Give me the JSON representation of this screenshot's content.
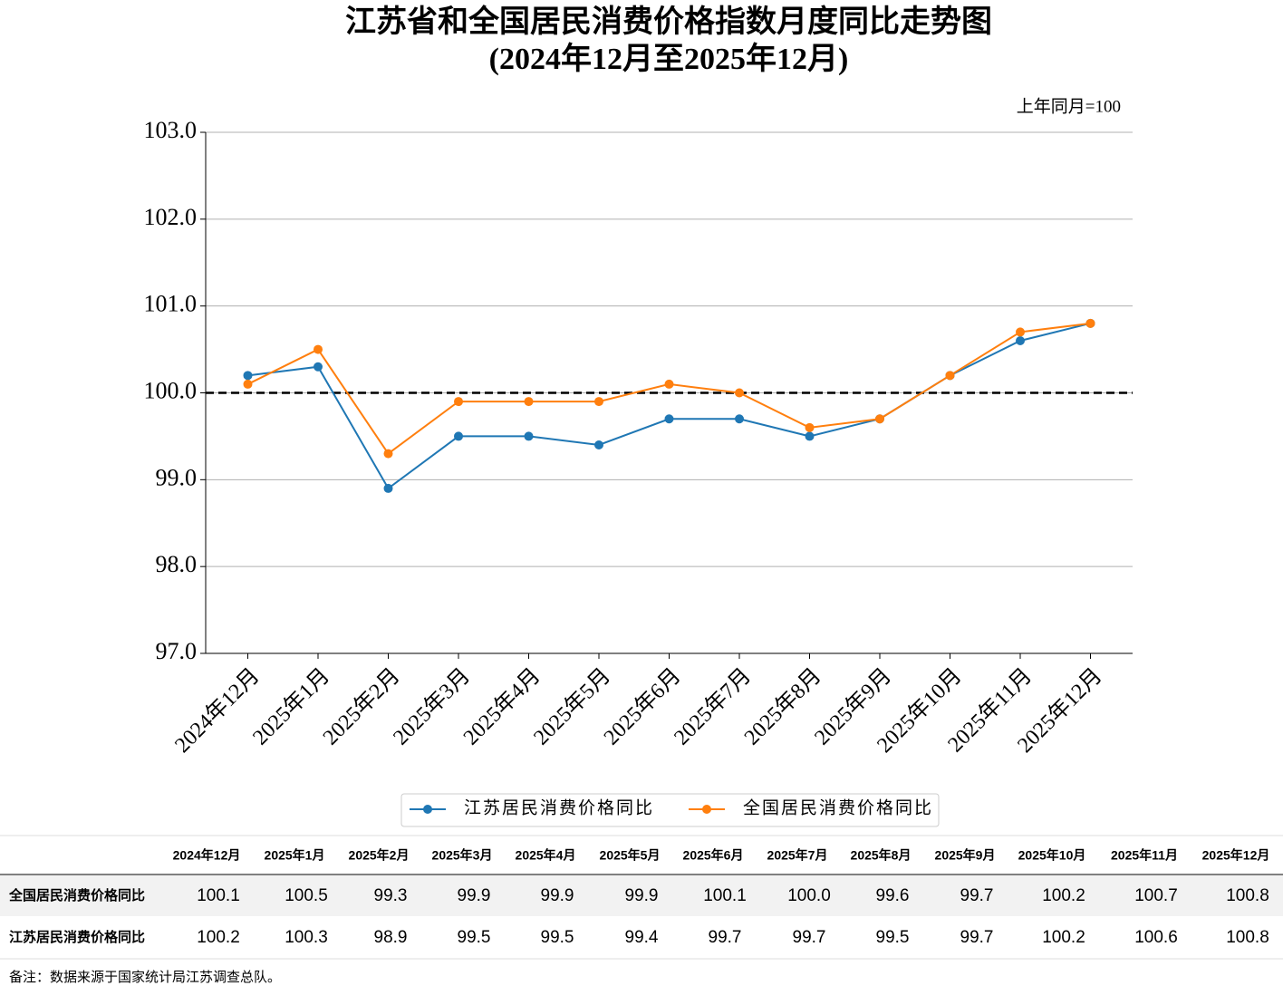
{
  "chart_data": {
    "type": "line",
    "title": "江苏省和全国居民消费价格指数月度同比走势图",
    "subtitle": "(2024年12月至2025年12月)",
    "unit_note": "上年同月=100",
    "categories": [
      "2024年12月",
      "2025年1月",
      "2025年2月",
      "2025年3月",
      "2025年4月",
      "2025年5月",
      "2025年6月",
      "2025年7月",
      "2025年8月",
      "2025年9月",
      "2025年10月",
      "2025年11月",
      "2025年12月"
    ],
    "series": [
      {
        "name": "江苏居民消费价格同比",
        "color": "#1f77b4",
        "values": [
          100.2,
          100.3,
          98.9,
          99.5,
          99.5,
          99.4,
          99.7,
          99.7,
          99.5,
          99.7,
          100.2,
          100.6,
          100.8
        ]
      },
      {
        "name": "全国居民消费价格同比",
        "color": "#ff7f0e",
        "values": [
          100.1,
          100.5,
          99.3,
          99.9,
          99.9,
          99.9,
          100.1,
          100.0,
          99.6,
          99.7,
          100.2,
          100.7,
          100.8
        ]
      }
    ],
    "ylim": [
      97,
      103
    ],
    "yticks": [
      {
        "value": 97,
        "label": "97.0"
      },
      {
        "value": 98,
        "label": "98.0"
      },
      {
        "value": 99,
        "label": "99.0"
      },
      {
        "value": 100,
        "label": "100.0"
      },
      {
        "value": 101,
        "label": "101.0"
      },
      {
        "value": 102,
        "label": "102.0"
      },
      {
        "value": 103,
        "label": "103.0"
      }
    ],
    "reference_line": 100,
    "grid": true,
    "legend": "bottom"
  },
  "table": {
    "rows": [
      {
        "label": "全国居民消费价格同比",
        "cells": [
          "100.1",
          "100.5",
          "99.3",
          "99.9",
          "99.9",
          "99.9",
          "100.1",
          "100.0",
          "99.6",
          "99.7",
          "100.2",
          "100.7",
          "100.8"
        ]
      },
      {
        "label": "江苏居民消费价格同比",
        "cells": [
          "100.2",
          "100.3",
          "98.9",
          "99.5",
          "99.5",
          "99.4",
          "99.7",
          "99.7",
          "99.5",
          "99.7",
          "100.2",
          "100.6",
          "100.8"
        ]
      }
    ]
  },
  "footnote": "备注：数据来源于国家统计局江苏调查总队。"
}
